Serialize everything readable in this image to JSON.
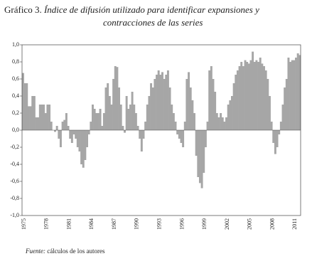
{
  "chart_data": {
    "type": "bar",
    "title_label": "Gráfico 3.",
    "title": "Índice de difusión utilizado para identificar expansiones y contracciones de las series",
    "source_label": "Fuente:",
    "source": "cálculos de los autores",
    "color": "#a6a6a6",
    "ylim": [
      -1,
      1
    ],
    "yticks": [
      {
        "value": -1,
        "label": "-1,0"
      },
      {
        "value": -0.8,
        "label": "-0,8"
      },
      {
        "value": -0.6,
        "label": "-0,6"
      },
      {
        "value": -0.4,
        "label": "-0,4"
      },
      {
        "value": -0.2,
        "label": "-0,2"
      },
      {
        "value": 0,
        "label": "0,0"
      },
      {
        "value": 0.2,
        "label": "0,2"
      },
      {
        "value": 0.4,
        "label": "0,4"
      },
      {
        "value": 0.6,
        "label": "0,6"
      },
      {
        "value": 0.8,
        "label": "0,8"
      },
      {
        "value": 1,
        "label": "1,0"
      }
    ],
    "categories": [
      "1975",
      null,
      null,
      null,
      null,
      null,
      null,
      null,
      null,
      null,
      null,
      null,
      "1978",
      null,
      null,
      null,
      null,
      null,
      null,
      null,
      null,
      null,
      null,
      null,
      "1981",
      null,
      null,
      null,
      null,
      null,
      null,
      null,
      null,
      null,
      null,
      null,
      "1984",
      null,
      null,
      null,
      null,
      null,
      null,
      null,
      null,
      null,
      null,
      null,
      "1987",
      null,
      null,
      null,
      null,
      null,
      null,
      null,
      null,
      null,
      null,
      null,
      "1990",
      null,
      null,
      null,
      null,
      null,
      null,
      null,
      null,
      null,
      null,
      null,
      "1993",
      null,
      null,
      null,
      null,
      null,
      null,
      null,
      null,
      null,
      null,
      null,
      "1996",
      null,
      null,
      null,
      null,
      null,
      null,
      null,
      null,
      null,
      null,
      null,
      "1999",
      null,
      null,
      null,
      null,
      null,
      null,
      null,
      null,
      null,
      null,
      null,
      "2002",
      null,
      null,
      null,
      null,
      null,
      null,
      null,
      null,
      null,
      null,
      null,
      "2005",
      null,
      null,
      null,
      null,
      null,
      null,
      null,
      null,
      null,
      null,
      null,
      "2008",
      null,
      null,
      null,
      null,
      null,
      null,
      null,
      null,
      null,
      null,
      null,
      "2011",
      null,
      null,
      null
    ],
    "values": [
      0.67,
      0.55,
      0.55,
      0.28,
      0.28,
      0.4,
      0.4,
      0.15,
      0.15,
      0.3,
      0.3,
      0.3,
      0.2,
      0.3,
      0.3,
      0.1,
      0.0,
      -0.02,
      0.05,
      -0.1,
      -0.2,
      0.1,
      0.12,
      0.2,
      0.05,
      -0.1,
      -0.15,
      -0.05,
      -0.1,
      -0.2,
      -0.25,
      -0.4,
      -0.44,
      -0.35,
      -0.2,
      -0.05,
      0.1,
      0.3,
      0.25,
      0.2,
      0.2,
      0.25,
      0.05,
      0.2,
      0.5,
      0.55,
      0.4,
      0.3,
      0.6,
      0.75,
      0.74,
      0.5,
      0.3,
      0.05,
      -0.03,
      0.4,
      0.25,
      0.3,
      0.45,
      0.3,
      0.2,
      0.05,
      -0.1,
      -0.25,
      -0.1,
      0.1,
      0.3,
      0.4,
      0.55,
      0.5,
      0.6,
      0.65,
      0.7,
      0.65,
      0.68,
      0.6,
      0.65,
      0.7,
      0.5,
      0.3,
      0.2,
      0.1,
      -0.05,
      -0.1,
      -0.15,
      -0.2,
      0.1,
      0.6,
      0.68,
      0.5,
      0.35,
      0.2,
      -0.3,
      -0.55,
      -0.62,
      -0.68,
      -0.5,
      -0.2,
      0.1,
      0.7,
      0.75,
      0.6,
      0.45,
      0.2,
      0.15,
      0.2,
      0.15,
      0.1,
      0.15,
      0.3,
      0.35,
      0.4,
      0.55,
      0.65,
      0.7,
      0.75,
      0.8,
      0.75,
      0.82,
      0.8,
      0.78,
      0.82,
      0.92,
      0.8,
      0.82,
      0.8,
      0.85,
      0.78,
      0.75,
      0.7,
      0.6,
      0.4,
      0.1,
      -0.15,
      -0.28,
      -0.2,
      -0.05,
      0.1,
      0.3,
      0.5,
      0.6,
      0.85,
      0.8,
      0.82,
      0.82,
      0.85,
      0.9,
      0.88
    ]
  }
}
